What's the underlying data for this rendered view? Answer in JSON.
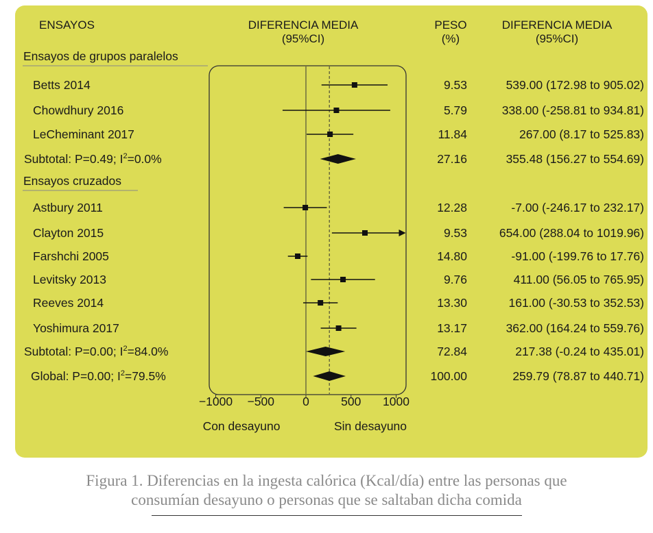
{
  "headers": {
    "study": "ENSAYOS",
    "diff_line1": "DIFERENCIA MEDIA",
    "diff_line2": "(95%CI)",
    "weight_line1": "PESO",
    "weight_line2": "(%)",
    "diff2_line1": "DIFERENCIA MEDIA",
    "diff2_line2": "(95%CI)"
  },
  "axis": {
    "ticks": [
      -1000,
      -500,
      0,
      500,
      1000
    ],
    "left_label": "Con desayuno",
    "right_label": "Sin desayuno"
  },
  "caption": {
    "line1": "Figura 1. Diferencias en la ingesta calórica (Kcal/día) entre las personas que",
    "line2": "consumían desayuno o personas que se saltaban dicha comida"
  },
  "chart_data": {
    "type": "forest",
    "xlim": [
      -1000,
      1000
    ],
    "overall_mean": 259.79,
    "groups": [
      {
        "heading": "Ensayos de grupos paralelos",
        "rows": [
          {
            "kind": "study",
            "label": "Betts 2014",
            "mean": 539.0,
            "lo": 172.98,
            "hi": 905.02,
            "weight": "9.53",
            "ci_text": "539.00 (172.98 to 905.02)"
          },
          {
            "kind": "study",
            "label": "Chowdhury 2016",
            "mean": 338.0,
            "lo": -258.81,
            "hi": 934.81,
            "weight": "5.79",
            "ci_text": "338.00 (-258.81 to 934.81)"
          },
          {
            "kind": "study",
            "label": "LeCheminant 2017",
            "mean": 267.0,
            "lo": 8.17,
            "hi": 525.83,
            "weight": "11.84",
            "ci_text": "267.00 (8.17 to 525.83)"
          },
          {
            "kind": "subtotal",
            "label": "Subtotal: P=0.49; I",
            "sup": "2",
            "label_tail": "=0.0%",
            "mean": 355.48,
            "lo": 156.27,
            "hi": 554.69,
            "weight": "27.16",
            "ci_text": "355.48 (156.27 to 554.69)"
          }
        ]
      },
      {
        "heading": "Ensayos cruzados",
        "rows": [
          {
            "kind": "study",
            "label": "Astbury 2011",
            "mean": -7.0,
            "lo": -246.17,
            "hi": 232.17,
            "weight": "12.28",
            "ci_text": "-7.00 (-246.17 to 232.17)"
          },
          {
            "kind": "study",
            "label": "Clayton 2015",
            "mean": 654.0,
            "lo": 288.04,
            "hi": 1019.96,
            "weight": "9.53",
            "ci_text": "654.00 (288.04 to 1019.96)"
          },
          {
            "kind": "study",
            "label": "Farshchi 2005",
            "mean": -91.0,
            "lo": -199.76,
            "hi": 17.76,
            "weight": "14.80",
            "ci_text": "-91.00 (-199.76 to 17.76)"
          },
          {
            "kind": "study",
            "label": "Levitsky 2013",
            "mean": 411.0,
            "lo": 56.05,
            "hi": 765.95,
            "weight": "9.76",
            "ci_text": "411.00 (56.05 to 765.95)"
          },
          {
            "kind": "study",
            "label": "Reeves 2014",
            "mean": 161.0,
            "lo": -30.53,
            "hi": 352.53,
            "weight": "13.30",
            "ci_text": "161.00 (-30.53 to 352.53)"
          },
          {
            "kind": "study",
            "label": "Yoshimura 2017",
            "mean": 362.0,
            "lo": 164.24,
            "hi": 559.76,
            "weight": "13.17",
            "ci_text": "362.00 (164.24 to 559.76)"
          },
          {
            "kind": "subtotal",
            "label": "Subtotal: P=0.00; I",
            "sup": "2",
            "label_tail": "=84.0%",
            "mean": 217.38,
            "lo": -0.24,
            "hi": 435.01,
            "weight": "72.84",
            "ci_text": "217.38 (-0.24 to 435.01)"
          }
        ]
      }
    ],
    "overall": {
      "kind": "overall",
      "label": "Global: P=0.00; I",
      "sup": "2",
      "label_tail": "=79.5%",
      "mean": 259.79,
      "lo": 78.87,
      "hi": 440.71,
      "weight": "100.00",
      "ci_text": "259.79 (78.87 to 440.71)"
    }
  }
}
